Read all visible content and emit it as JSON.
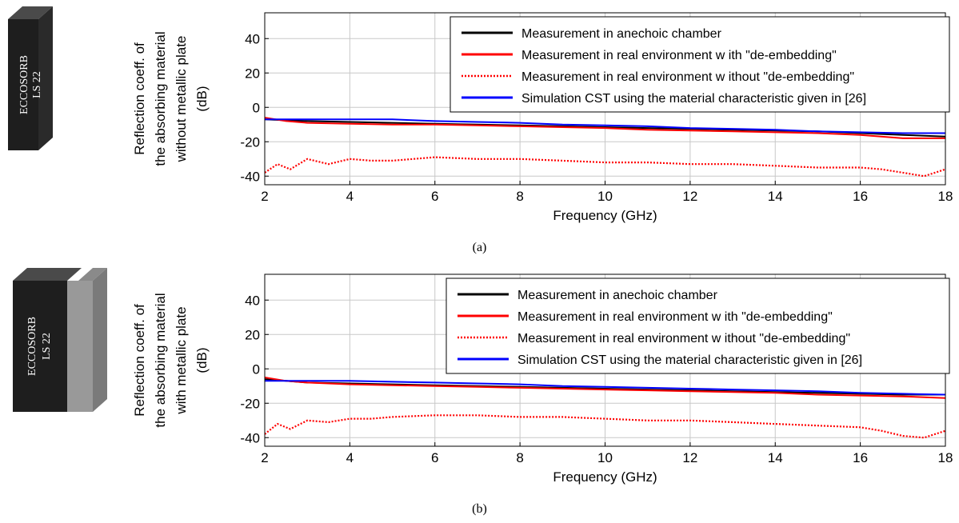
{
  "blocks": [
    {
      "line1": "ECCOSORB",
      "line2": "LS 22",
      "has_plate": false
    },
    {
      "line1": "ECCOSORB",
      "line2": "LS 22",
      "has_plate": true
    }
  ],
  "captions": [
    "(a)",
    "(b)"
  ],
  "chart_data": [
    {
      "type": "line",
      "xlabel": "Frequency (GHz)",
      "ylabel_lines": [
        "Reflection coeff. of",
        "the absorbing material",
        "without metallic plate",
        "(dB)"
      ],
      "xlim": [
        2,
        18
      ],
      "ylim": [
        -45,
        55
      ],
      "xticks": [
        2,
        4,
        6,
        8,
        10,
        12,
        14,
        16,
        18
      ],
      "yticks": [
        -40,
        -20,
        0,
        20,
        40
      ],
      "grid": true,
      "legend_position": "top-right",
      "series": [
        {
          "name": "Measurement in anechoic chamber",
          "color": "#000000",
          "style": "solid",
          "x": [
            2,
            2.5,
            3,
            4,
            5,
            6,
            7,
            8,
            9,
            10,
            11,
            12,
            13,
            14,
            15,
            16,
            17,
            18
          ],
          "y": [
            -7,
            -7.5,
            -8,
            -8.5,
            -9,
            -9.5,
            -10,
            -10.5,
            -11,
            -11.5,
            -12,
            -12.5,
            -13,
            -13.5,
            -14,
            -15,
            -16,
            -17
          ]
        },
        {
          "name": "Measurement in real environment w ith \"de-embedding\"",
          "color": "#ff0000",
          "style": "solid",
          "x": [
            2,
            2.5,
            3,
            4,
            5,
            6,
            7,
            8,
            9,
            10,
            11,
            12,
            13,
            14,
            15,
            16,
            17,
            18
          ],
          "y": [
            -6,
            -8,
            -9,
            -9.5,
            -10,
            -10,
            -10.5,
            -11,
            -11.5,
            -12,
            -13,
            -13.5,
            -14,
            -14.5,
            -15,
            -16,
            -18,
            -18
          ]
        },
        {
          "name": "Measurement in real environment w ithout \"de-embedding\"",
          "color": "#ff0000",
          "style": "dotted",
          "x": [
            2,
            2.3,
            2.6,
            3,
            3.5,
            4,
            4.5,
            5,
            6,
            7,
            8,
            9,
            10,
            11,
            12,
            13,
            14,
            15,
            16,
            16.5,
            17,
            17.5,
            18
          ],
          "y": [
            -38,
            -33,
            -36,
            -30,
            -33,
            -30,
            -31,
            -31,
            -29,
            -30,
            -30,
            -31,
            -32,
            -32,
            -33,
            -33,
            -34,
            -35,
            -35,
            -36,
            -38,
            -40,
            -36
          ]
        },
        {
          "name": "Simulation CST using the material characteristic given in [26]",
          "color": "#0000ff",
          "style": "solid",
          "x": [
            2,
            3,
            4,
            5,
            6,
            7,
            8,
            9,
            10,
            11,
            12,
            13,
            14,
            15,
            16,
            17,
            18
          ],
          "y": [
            -7,
            -7,
            -7,
            -7,
            -8,
            -8.5,
            -9,
            -10,
            -10.5,
            -11,
            -12,
            -12.5,
            -13,
            -14,
            -14.5,
            -15,
            -15
          ]
        }
      ]
    },
    {
      "type": "line",
      "xlabel": "Frequency (GHz)",
      "ylabel_lines": [
        "Reflection coeff. of",
        "the absorbing material",
        "with metallic plate",
        "(dB)"
      ],
      "xlim": [
        2,
        18
      ],
      "ylim": [
        -45,
        55
      ],
      "xticks": [
        2,
        4,
        6,
        8,
        10,
        12,
        14,
        16,
        18
      ],
      "yticks": [
        -40,
        -20,
        0,
        20,
        40
      ],
      "grid": true,
      "legend_position": "top-right",
      "series": [
        {
          "name": "Measurement in anechoic chamber",
          "color": "#000000",
          "style": "solid",
          "x": [
            2,
            2.5,
            3,
            4,
            5,
            6,
            7,
            8,
            9,
            10,
            11,
            12,
            13,
            14,
            15,
            16,
            17,
            18
          ],
          "y": [
            -6,
            -7,
            -8,
            -8.5,
            -9,
            -9.5,
            -10,
            -10.5,
            -11,
            -11.5,
            -12,
            -12.5,
            -13,
            -13.5,
            -14,
            -14.5,
            -15,
            -15
          ]
        },
        {
          "name": "Measurement in real environment w ith \"de-embedding\"",
          "color": "#ff0000",
          "style": "solid",
          "x": [
            2,
            2.5,
            3,
            4,
            5,
            6,
            7,
            8,
            9,
            10,
            11,
            12,
            13,
            14,
            15,
            16,
            17,
            18
          ],
          "y": [
            -5,
            -7,
            -8,
            -9,
            -9.5,
            -10,
            -10.5,
            -11,
            -11.5,
            -12,
            -12.5,
            -13,
            -13.5,
            -14,
            -15,
            -15.5,
            -16,
            -17
          ]
        },
        {
          "name": "Measurement in real environment w ithout \"de-embedding\"",
          "color": "#ff0000",
          "style": "dotted",
          "x": [
            2,
            2.3,
            2.6,
            3,
            3.5,
            4,
            4.5,
            5,
            6,
            7,
            8,
            9,
            10,
            11,
            12,
            13,
            14,
            15,
            16,
            16.5,
            17,
            17.5,
            18
          ],
          "y": [
            -38,
            -32,
            -35,
            -30,
            -31,
            -29,
            -29,
            -28,
            -27,
            -27,
            -28,
            -28,
            -29,
            -30,
            -30,
            -31,
            -32,
            -33,
            -34,
            -36,
            -39,
            -40,
            -36
          ]
        },
        {
          "name": "Simulation CST using the material characteristic given in [26]",
          "color": "#0000ff",
          "style": "solid",
          "x": [
            2,
            3,
            4,
            5,
            6,
            7,
            8,
            9,
            10,
            11,
            12,
            13,
            14,
            15,
            16,
            17,
            18
          ],
          "y": [
            -7,
            -7,
            -7,
            -7.5,
            -8,
            -8.5,
            -9,
            -10,
            -10.5,
            -11,
            -11.5,
            -12,
            -12.5,
            -13,
            -14,
            -14.5,
            -15
          ]
        }
      ]
    }
  ]
}
